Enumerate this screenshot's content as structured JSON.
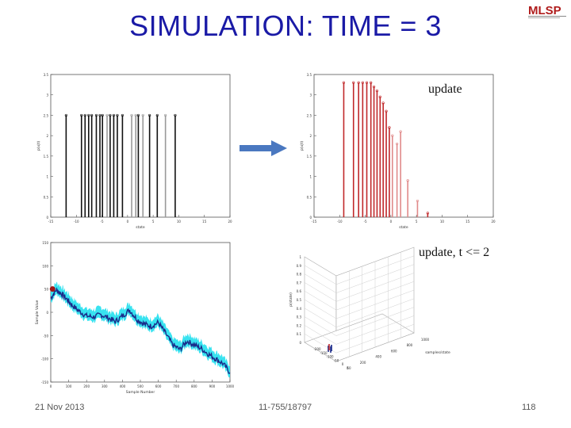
{
  "slide": {
    "title": "SIMULATION: TIME = 3",
    "logo": "MLSP",
    "label_update": "update",
    "label_update_t": "update, t <= 2",
    "footer_date": "21 Nov 2013",
    "footer_course": "11-755/18797",
    "footer_page": "118"
  },
  "colors": {
    "title": "#1a1aa6",
    "arrow": "#4a78c0",
    "red": "#c0282a",
    "black": "#111111",
    "grey": "#888888",
    "cyan": "#22e0ee",
    "navy": "#1a2a8a"
  },
  "chart_data": [
    {
      "type": "bar",
      "name_hint": "particles-before",
      "xlim": [
        -15,
        20
      ],
      "ylim": [
        0,
        3.5
      ],
      "xticks": [
        "-15",
        "-10",
        "-5",
        "0",
        "5",
        "10",
        "15",
        "20"
      ],
      "yticks": [
        "0",
        "0.5",
        "1",
        "1.5",
        "2",
        "2.5",
        "3",
        "3.5"
      ],
      "ylabel": "p(x|t)",
      "xlabel": "state",
      "x": [
        -12,
        -9,
        -8.3,
        -7.6,
        -7,
        -6.1,
        -5.4,
        -4.9,
        -4,
        -3.4,
        -2.7,
        -2,
        -1,
        0.8,
        1.6,
        2.1,
        3,
        4.3,
        5.8,
        7.4,
        9.3
      ],
      "values": [
        2.5,
        2.5,
        2.5,
        2.5,
        2.5,
        2.5,
        2.5,
        2.5,
        2.5,
        2.5,
        2.5,
        2.5,
        2.5,
        2.5,
        2.5,
        2.5,
        2.5,
        2.5,
        2.5,
        2.5,
        2.5
      ],
      "tones": [
        "b",
        "b",
        "b",
        "b",
        "b",
        "b",
        "b",
        "b",
        "g",
        "b",
        "b",
        "b",
        "b",
        "g",
        "g",
        "b",
        "g",
        "b",
        "b",
        "g",
        "b"
      ]
    },
    {
      "type": "bar",
      "name_hint": "particles-after",
      "xlim": [
        -15,
        20
      ],
      "ylim": [
        0,
        3.5
      ],
      "xticks": [
        "-15",
        "-10",
        "-5",
        "0",
        "5",
        "10",
        "15",
        "20"
      ],
      "yticks": [
        "0",
        "0.5",
        "1",
        "1.5",
        "2",
        "2.5",
        "3",
        "3.5"
      ],
      "ylabel": "p(x|t)",
      "xlabel": "state",
      "x": [
        -9.2,
        -7.3,
        -6.3,
        -5.5,
        -4.7,
        -3.9,
        -3.3,
        -2.7,
        -2.1,
        -1.5,
        -0.9,
        -0.3,
        0.3,
        1.2,
        1.9,
        3.3,
        5.2,
        7.2
      ],
      "values": [
        3.3,
        3.3,
        3.3,
        3.3,
        3.3,
        3.3,
        3.2,
        3.1,
        2.95,
        2.8,
        2.6,
        2.2,
        2.0,
        1.8,
        2.1,
        0.9,
        0.4,
        0.1
      ],
      "tones": [
        "r",
        "r",
        "r",
        "r",
        "r",
        "r",
        "r",
        "r",
        "r",
        "r",
        "r",
        "r",
        "p",
        "p",
        "p",
        "p",
        "p",
        "r"
      ]
    },
    {
      "type": "line",
      "name_hint": "trajectory",
      "xlim": [
        0,
        1000
      ],
      "ylim": [
        -150,
        150
      ],
      "xticks": [
        "0",
        "100",
        "200",
        "300",
        "400",
        "500",
        "600",
        "700",
        "800",
        "900",
        "1000"
      ],
      "yticks": [
        "-150",
        "-100",
        "-50",
        "0",
        "50",
        "100",
        "150"
      ],
      "xlabel": "Sample Number",
      "ylabel": "Sample Value",
      "x": [
        0,
        30,
        60,
        90,
        120,
        160,
        200,
        240,
        280,
        320,
        360,
        400,
        440,
        480,
        520,
        560,
        600,
        640,
        680,
        720,
        760,
        800,
        840,
        880,
        920,
        960,
        1000
      ],
      "values": [
        30,
        48,
        40,
        28,
        15,
        2,
        -8,
        -10,
        -5,
        -12,
        -20,
        -8,
        5,
        -15,
        -25,
        -30,
        -22,
        -45,
        -70,
        -80,
        -62,
        -70,
        -78,
        -90,
        -100,
        -110,
        -130
      ],
      "marker": {
        "x": 10,
        "y": 50
      }
    },
    {
      "type": "scatter",
      "name_hint": "3d-surface",
      "zticks": [
        "0",
        "0.1",
        "0.2",
        "0.3",
        "0.4",
        "0.5",
        "0.6",
        "0.7",
        "0.8",
        "0.9",
        "1"
      ],
      "zlabel": "p(state)",
      "ylabel": "samples/state",
      "xticks_left": [
        "-200",
        "-150",
        "-100",
        "-50",
        "0",
        "50"
      ],
      "xticks_right": [
        "0",
        "200",
        "400",
        "600",
        "800",
        "1000"
      ]
    }
  ]
}
